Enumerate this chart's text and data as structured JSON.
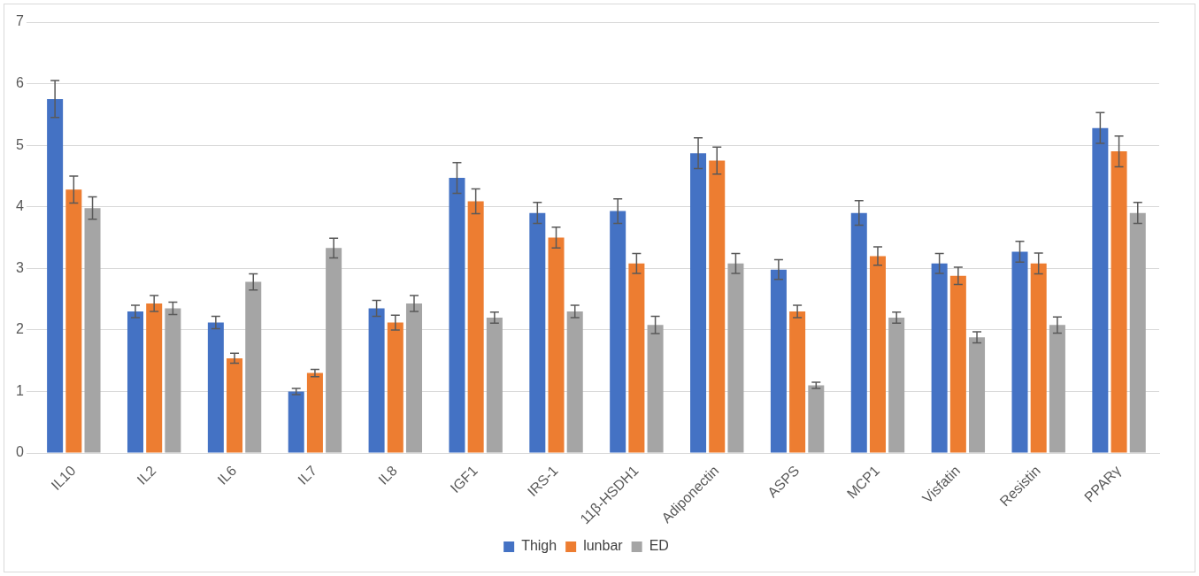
{
  "chart_data": {
    "type": "bar",
    "categories": [
      "IL10",
      "IL2",
      "IL6",
      "IL7",
      "IL8",
      "IGF1",
      "IRS-1",
      "11β-HSDH1",
      "Adiponectin",
      "ASPS",
      "MCP1",
      "Visfatin",
      "Resistin",
      "PPARγ"
    ],
    "series": [
      {
        "name": "Thigh",
        "color": "#4472c4",
        "values": [
          5.75,
          2.3,
          2.12,
          1.0,
          2.35,
          4.47,
          3.9,
          3.93,
          4.87,
          2.98,
          3.9,
          3.08,
          3.27,
          5.28
        ],
        "errors": [
          0.3,
          0.1,
          0.1,
          0.05,
          0.13,
          0.25,
          0.17,
          0.2,
          0.25,
          0.16,
          0.2,
          0.16,
          0.17,
          0.25
        ]
      },
      {
        "name": "lunbar",
        "color": "#ed7d31",
        "values": [
          4.28,
          2.43,
          1.54,
          1.3,
          2.12,
          4.09,
          3.5,
          3.08,
          4.75,
          2.3,
          3.2,
          2.88,
          3.08,
          4.9
        ],
        "errors": [
          0.22,
          0.13,
          0.08,
          0.06,
          0.12,
          0.2,
          0.17,
          0.16,
          0.22,
          0.1,
          0.15,
          0.14,
          0.17,
          0.25
        ]
      },
      {
        "name": "ED",
        "color": "#a5a5a5",
        "values": [
          3.98,
          2.35,
          2.78,
          3.33,
          2.43,
          2.2,
          2.3,
          2.08,
          3.08,
          1.1,
          2.2,
          1.88,
          2.08,
          3.9
        ],
        "errors": [
          0.18,
          0.1,
          0.13,
          0.16,
          0.13,
          0.09,
          0.1,
          0.14,
          0.16,
          0.05,
          0.09,
          0.09,
          0.13,
          0.17
        ]
      }
    ],
    "ylim": [
      0,
      7
    ],
    "yticks": [
      0,
      1,
      2,
      3,
      4,
      5,
      6,
      7
    ],
    "grid": "y",
    "legend": "bottom"
  }
}
